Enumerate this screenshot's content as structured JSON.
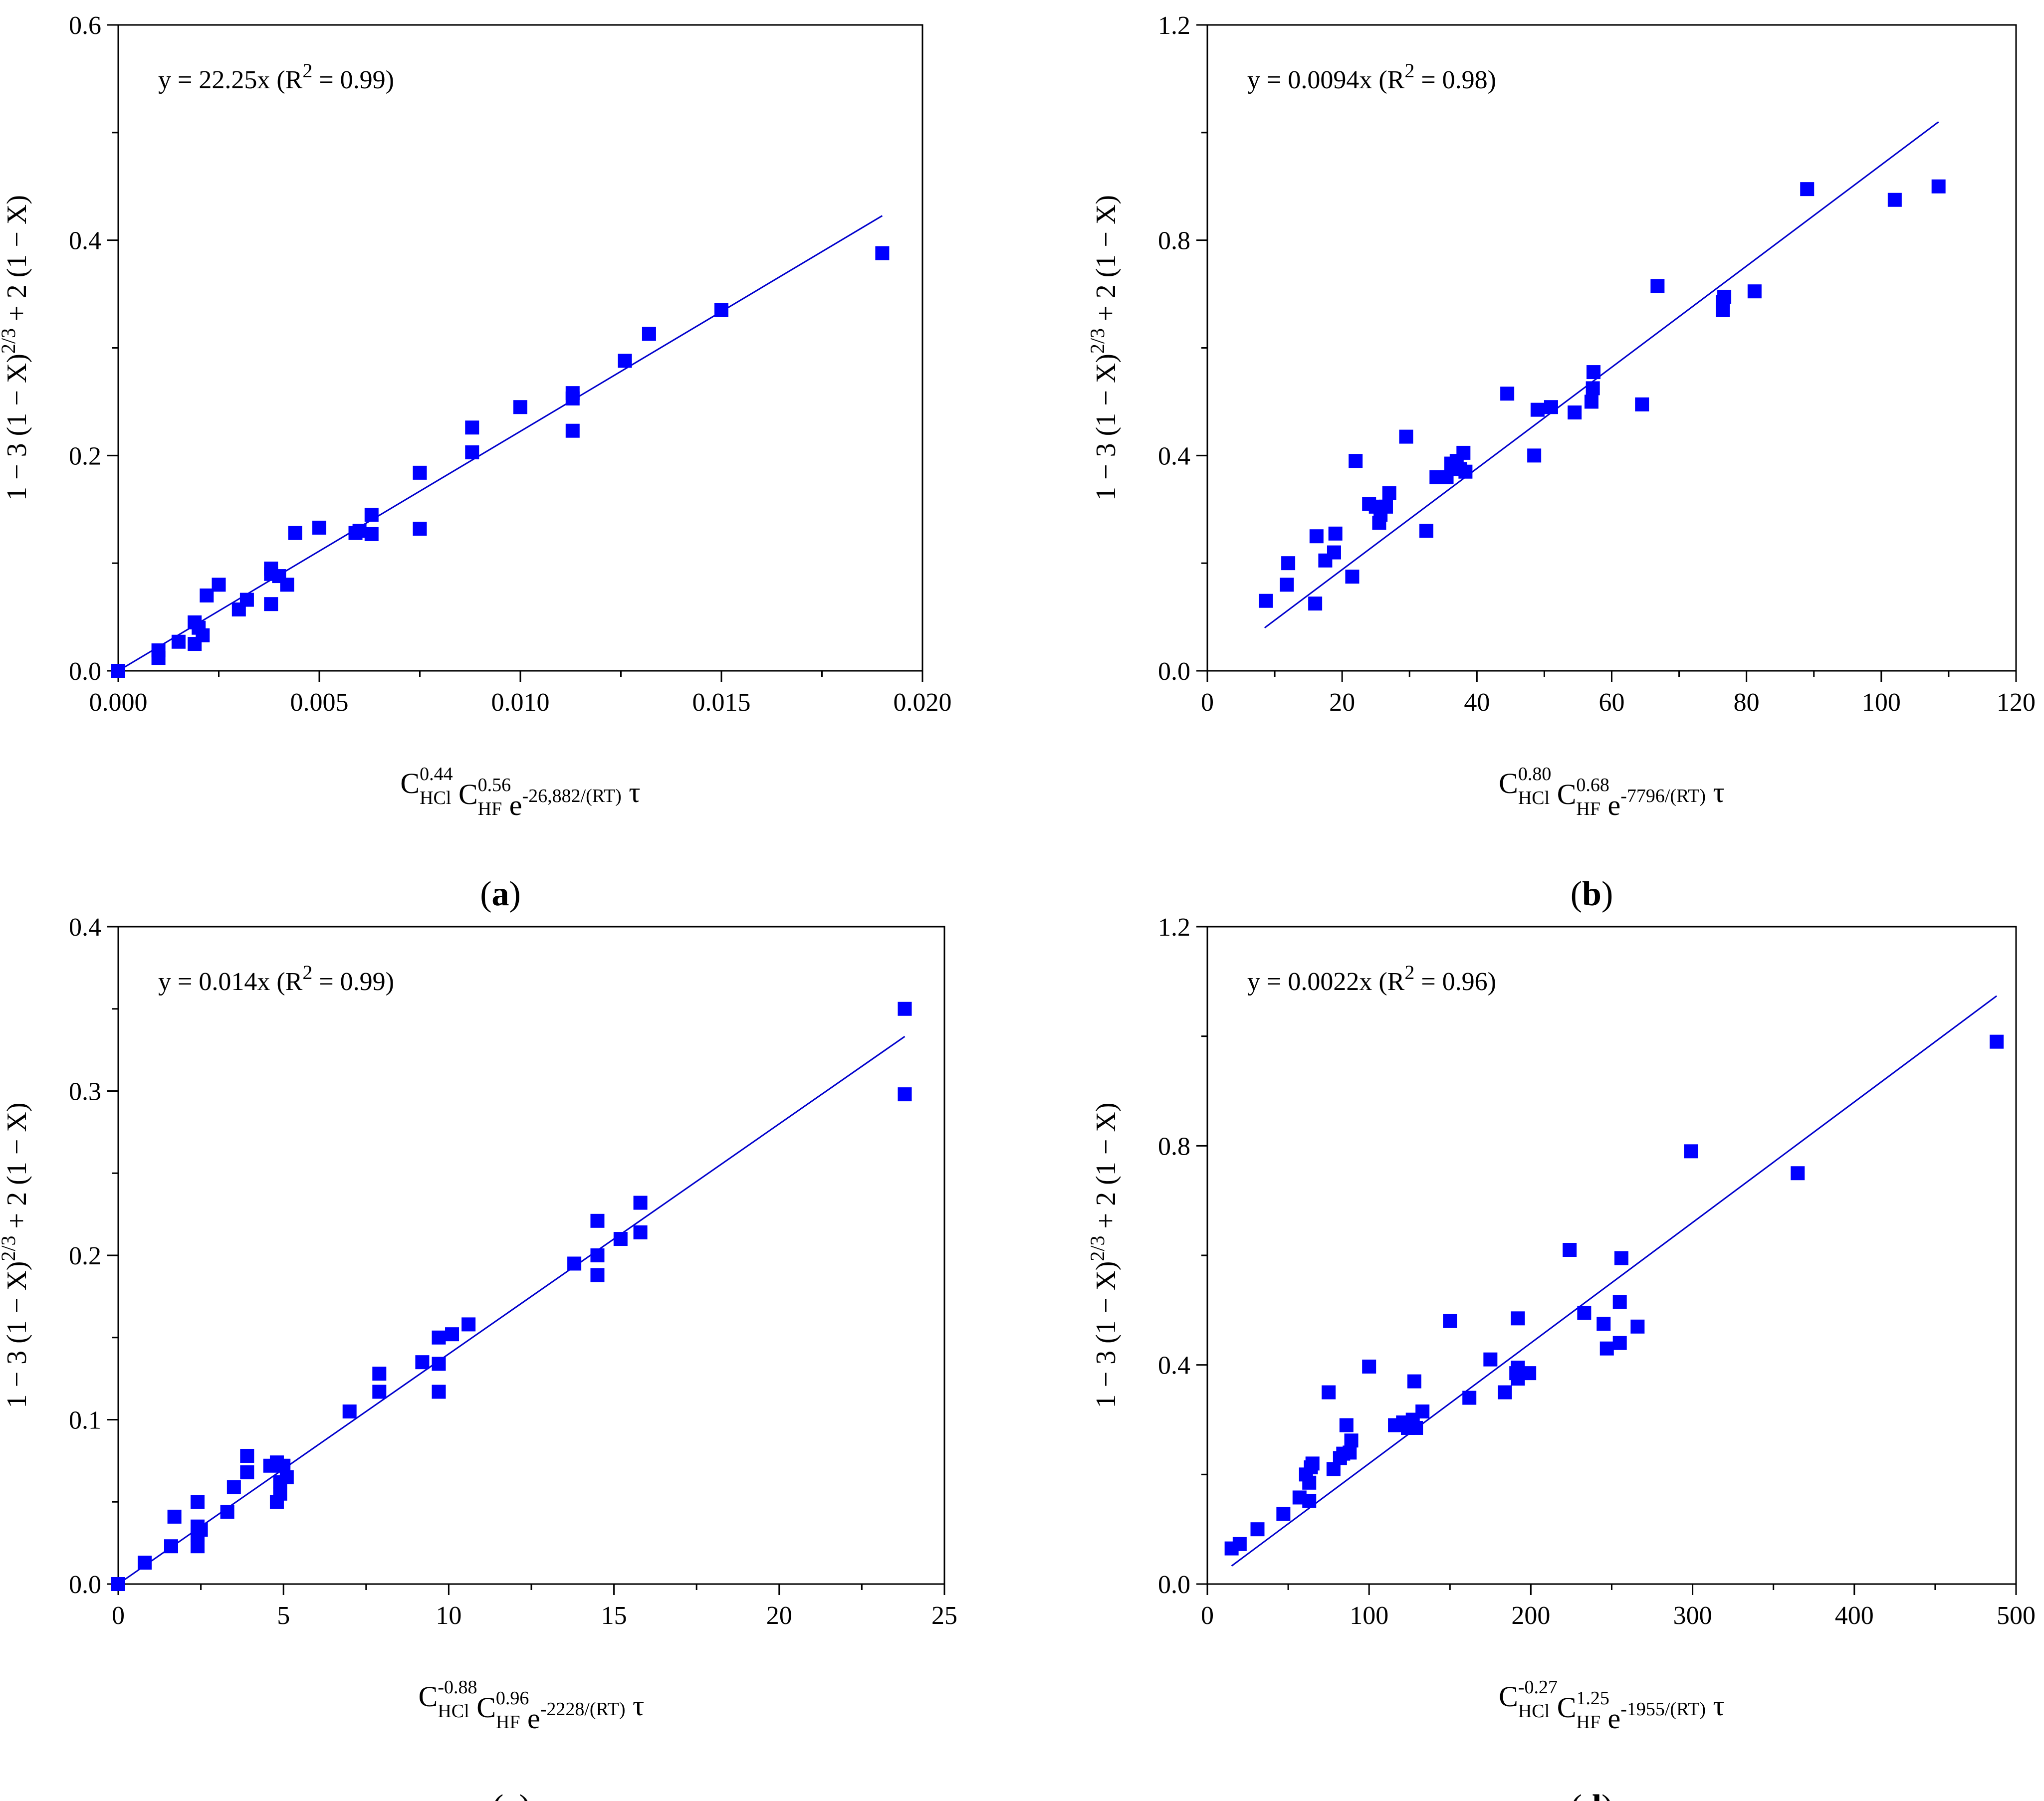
{
  "figure": {
    "marker_color": "#0000FF",
    "line_color": "#0000CC",
    "axis_color": "#000000"
  },
  "chart_data": [
    {
      "id": "a",
      "type": "scatter",
      "panel_label": "a",
      "equation": "y = 22.25x (R",
      "r2_sup": "2",
      "r2_rest": " = 0.99)",
      "fit": {
        "slope": 22.25,
        "x_start": 0.0,
        "x_end": 0.019
      },
      "xlim": [
        0,
        0.02
      ],
      "ylim": [
        0,
        0.6
      ],
      "xticks": [
        0,
        0.005,
        0.01,
        0.015,
        0.02
      ],
      "xtick_labels": [
        "0.000",
        "0.005",
        "0.010",
        "0.015",
        "0.020"
      ],
      "yticks": [
        0,
        0.2,
        0.4,
        0.6
      ],
      "ytick_labels": [
        "0.0",
        "0.2",
        "0.4",
        "0.6"
      ],
      "ylabel": "1 − 3 (1 − X)",
      "ylabel_sup": "2/3",
      "ylabel_rest": " + 2 (1 − X)",
      "xlabel_terms": [
        {
          "base": "C",
          "sup": "0.44",
          "sub": "HCl"
        },
        {
          "base": "C",
          "sup": "0.56",
          "sub": "HF"
        },
        {
          "base": "e",
          "sup": "-26,882/(RT)",
          "sub": ""
        }
      ],
      "xlabel_tail": "τ",
      "points": [
        [
          0.0,
          0.0
        ],
        [
          0.001,
          0.019
        ],
        [
          0.001,
          0.012
        ],
        [
          0.0015,
          0.027
        ],
        [
          0.0019,
          0.025
        ],
        [
          0.0019,
          0.045
        ],
        [
          0.002,
          0.04
        ],
        [
          0.0021,
          0.033
        ],
        [
          0.0022,
          0.07
        ],
        [
          0.0025,
          0.08
        ],
        [
          0.003,
          0.057
        ],
        [
          0.0032,
          0.066
        ],
        [
          0.0038,
          0.095
        ],
        [
          0.0038,
          0.062
        ],
        [
          0.0038,
          0.09
        ],
        [
          0.004,
          0.088
        ],
        [
          0.0042,
          0.08
        ],
        [
          0.0044,
          0.128
        ],
        [
          0.005,
          0.133
        ],
        [
          0.0059,
          0.128
        ],
        [
          0.006,
          0.13
        ],
        [
          0.0063,
          0.127
        ],
        [
          0.0063,
          0.145
        ],
        [
          0.0075,
          0.184
        ],
        [
          0.0075,
          0.132
        ],
        [
          0.0088,
          0.226
        ],
        [
          0.0088,
          0.203
        ],
        [
          0.01,
          0.245
        ],
        [
          0.0113,
          0.258
        ],
        [
          0.0113,
          0.253
        ],
        [
          0.0113,
          0.223
        ],
        [
          0.0126,
          0.288
        ],
        [
          0.0132,
          0.313
        ],
        [
          0.015,
          0.335
        ],
        [
          0.019,
          0.388
        ]
      ]
    },
    {
      "id": "b",
      "type": "scatter",
      "panel_label": "b",
      "equation": "y = 0.0094x (R",
      "r2_sup": "2",
      "r2_rest": " = 0.98)",
      "fit": {
        "slope": 0.0094,
        "x_start": 8.5,
        "x_end": 108.5
      },
      "xlim": [
        0,
        120
      ],
      "ylim": [
        0,
        1.2
      ],
      "xticks": [
        0,
        20,
        40,
        60,
        80,
        100,
        120
      ],
      "xtick_labels": [
        "0",
        "20",
        "40",
        "60",
        "80",
        "100",
        "120"
      ],
      "yticks": [
        0,
        0.4,
        0.8,
        1.2
      ],
      "ytick_labels": [
        "0.0",
        "0.4",
        "0.8",
        "1.2"
      ],
      "ylabel": "1 − 3 (1 − X)",
      "ylabel_sup": "2/3",
      "ylabel_rest": " + 2 (1 − X)",
      "xlabel_terms": [
        {
          "base": "C",
          "sup": "0.80",
          "sub": "HCl"
        },
        {
          "base": "C",
          "sup": "0.68",
          "sub": "HF"
        },
        {
          "base": "e",
          "sup": "-7796/(RT)",
          "sub": ""
        }
      ],
      "xlabel_tail": "τ",
      "points": [
        [
          8.7,
          0.13
        ],
        [
          11.8,
          0.16
        ],
        [
          12.0,
          0.2
        ],
        [
          16.0,
          0.125
        ],
        [
          16.2,
          0.25
        ],
        [
          17.5,
          0.205
        ],
        [
          18.8,
          0.22
        ],
        [
          19.0,
          0.255
        ],
        [
          21.5,
          0.175
        ],
        [
          22.0,
          0.39
        ],
        [
          24.0,
          0.31
        ],
        [
          25.0,
          0.305
        ],
        [
          25.5,
          0.275
        ],
        [
          25.7,
          0.29
        ],
        [
          26.5,
          0.305
        ],
        [
          27.0,
          0.33
        ],
        [
          29.5,
          0.435
        ],
        [
          32.5,
          0.26
        ],
        [
          34.0,
          0.36
        ],
        [
          35.5,
          0.36
        ],
        [
          36.2,
          0.385
        ],
        [
          37.0,
          0.39
        ],
        [
          37.5,
          0.375
        ],
        [
          38.0,
          0.405
        ],
        [
          38.3,
          0.37
        ],
        [
          44.5,
          0.515
        ],
        [
          48.5,
          0.4
        ],
        [
          49.0,
          0.485
        ],
        [
          51.0,
          0.49
        ],
        [
          54.5,
          0.48
        ],
        [
          57.0,
          0.5
        ],
        [
          57.2,
          0.525
        ],
        [
          57.3,
          0.555
        ],
        [
          64.5,
          0.495
        ],
        [
          66.8,
          0.715
        ],
        [
          76.5,
          0.67
        ],
        [
          76.5,
          0.685
        ],
        [
          76.7,
          0.695
        ],
        [
          81.2,
          0.705
        ],
        [
          89.0,
          0.895
        ],
        [
          102.0,
          0.875
        ],
        [
          108.5,
          0.9
        ]
      ]
    },
    {
      "id": "c",
      "type": "scatter",
      "panel_label": "c",
      "equation": "y = 0.014x (R",
      "r2_sup": "2",
      "r2_rest": " = 0.99)",
      "fit": {
        "slope": 0.014,
        "x_start": 0.0,
        "x_end": 23.8
      },
      "xlim": [
        0,
        25
      ],
      "ylim": [
        0,
        0.4
      ],
      "xticks": [
        0,
        5,
        10,
        15,
        20,
        25
      ],
      "xtick_labels": [
        "0",
        "5",
        "10",
        "15",
        "20",
        "25"
      ],
      "yticks": [
        0,
        0.1,
        0.2,
        0.3,
        0.4
      ],
      "ytick_labels": [
        "0.0",
        "0.1",
        "0.2",
        "0.3",
        "0.4"
      ],
      "ylabel": "1 − 3 (1 − X)",
      "ylabel_sup": "2/3",
      "ylabel_rest": " + 2 (1 − X)",
      "xlabel_terms": [
        {
          "base": "C",
          "sup": "-0.88",
          "sub": "HCl"
        },
        {
          "base": "C",
          "sup": "0.96",
          "sub": "HF"
        },
        {
          "base": "e",
          "sup": "-2228/(RT)",
          "sub": ""
        }
      ],
      "xlabel_tail": "τ",
      "points": [
        [
          0.0,
          0.0
        ],
        [
          0.8,
          0.013
        ],
        [
          1.6,
          0.023
        ],
        [
          1.7,
          0.041
        ],
        [
          2.4,
          0.05
        ],
        [
          2.4,
          0.035
        ],
        [
          2.4,
          0.03
        ],
        [
          2.4,
          0.023
        ],
        [
          2.5,
          0.033
        ],
        [
          3.3,
          0.044
        ],
        [
          3.5,
          0.059
        ],
        [
          3.9,
          0.078
        ],
        [
          3.9,
          0.068
        ],
        [
          4.6,
          0.072
        ],
        [
          4.8,
          0.074
        ],
        [
          4.8,
          0.05
        ],
        [
          4.9,
          0.055
        ],
        [
          4.9,
          0.062
        ],
        [
          5.0,
          0.072
        ],
        [
          5.1,
          0.065
        ],
        [
          7.0,
          0.105
        ],
        [
          7.9,
          0.128
        ],
        [
          7.9,
          0.117
        ],
        [
          9.2,
          0.135
        ],
        [
          9.7,
          0.15
        ],
        [
          9.7,
          0.134
        ],
        [
          9.7,
          0.117
        ],
        [
          10.1,
          0.152
        ],
        [
          10.6,
          0.158
        ],
        [
          13.8,
          0.195
        ],
        [
          14.5,
          0.221
        ],
        [
          14.5,
          0.2
        ],
        [
          14.5,
          0.188
        ],
        [
          15.2,
          0.21
        ],
        [
          15.8,
          0.232
        ],
        [
          15.8,
          0.214
        ],
        [
          23.8,
          0.35
        ],
        [
          23.8,
          0.298
        ]
      ]
    },
    {
      "id": "d",
      "type": "scatter",
      "panel_label": "d",
      "equation": "y = 0.0022x (R",
      "r2_sup": "2",
      "r2_rest": " = 0.96)",
      "fit": {
        "slope": 0.0022,
        "x_start": 15,
        "x_end": 488
      },
      "xlim": [
        0,
        500
      ],
      "ylim": [
        0,
        1.2
      ],
      "xticks": [
        0,
        100,
        200,
        300,
        400,
        500
      ],
      "xtick_labels": [
        "0",
        "100",
        "200",
        "300",
        "400",
        "500"
      ],
      "yticks": [
        0,
        0.4,
        0.8,
        1.2
      ],
      "ytick_labels": [
        "0.0",
        "0.4",
        "0.8",
        "1.2"
      ],
      "ylabel": "1 − 3 (1 − X)",
      "ylabel_sup": "2/3",
      "ylabel_rest": " + 2 (1 − X)",
      "xlabel_terms": [
        {
          "base": "C",
          "sup": "-0.27",
          "sub": "HCl"
        },
        {
          "base": "C",
          "sup": "1.25",
          "sub": "HF"
        },
        {
          "base": "e",
          "sup": "-1955/(RT)",
          "sub": ""
        }
      ],
      "xlabel_tail": "τ",
      "points": [
        [
          15,
          0.065
        ],
        [
          20,
          0.073
        ],
        [
          31,
          0.1
        ],
        [
          47,
          0.128
        ],
        [
          57,
          0.158
        ],
        [
          61,
          0.2
        ],
        [
          63,
          0.185
        ],
        [
          63,
          0.152
        ],
        [
          64,
          0.213
        ],
        [
          65,
          0.22
        ],
        [
          75,
          0.35
        ],
        [
          78,
          0.21
        ],
        [
          82,
          0.23
        ],
        [
          84,
          0.238
        ],
        [
          86,
          0.29
        ],
        [
          88,
          0.24
        ],
        [
          89,
          0.262
        ],
        [
          100,
          0.397
        ],
        [
          116,
          0.29
        ],
        [
          121,
          0.295
        ],
        [
          124,
          0.285
        ],
        [
          127,
          0.3
        ],
        [
          128,
          0.37
        ],
        [
          129,
          0.285
        ],
        [
          133,
          0.315
        ],
        [
          150,
          0.48
        ],
        [
          162,
          0.34
        ],
        [
          175,
          0.41
        ],
        [
          184,
          0.35
        ],
        [
          191,
          0.385
        ],
        [
          192,
          0.375
        ],
        [
          192,
          0.395
        ],
        [
          192,
          0.485
        ],
        [
          199,
          0.385
        ],
        [
          224,
          0.61
        ],
        [
          233,
          0.495
        ],
        [
          245,
          0.475
        ],
        [
          247,
          0.43
        ],
        [
          255,
          0.44
        ],
        [
          255,
          0.515
        ],
        [
          256,
          0.595
        ],
        [
          266,
          0.47
        ],
        [
          299,
          0.79
        ],
        [
          365,
          0.75
        ],
        [
          488,
          0.99
        ]
      ]
    }
  ]
}
